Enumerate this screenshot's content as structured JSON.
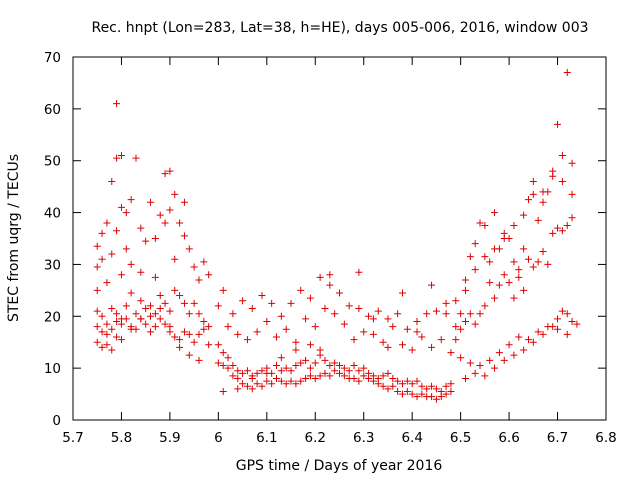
{
  "chart_data": {
    "type": "scatter",
    "title": "Rec. hnpt (Lon=283, Lat=38, h=HE), days 005-006, 2016, window 003",
    "xlabel": "GPS time / Days of year 2016",
    "ylabel": "STEC from uqrg / TECUs",
    "xlim": [
      5.7,
      6.8
    ],
    "ylim": [
      0,
      70
    ],
    "xticks": [
      "5.7",
      "5.8",
      "5.9",
      "6",
      "6.1",
      "6.2",
      "6.3",
      "6.4",
      "6.5",
      "6.6",
      "6.7",
      "6.8"
    ],
    "yticks": [
      "0",
      "10",
      "20",
      "30",
      "40",
      "50",
      "60",
      "70"
    ],
    "marker": "plus",
    "color": "#e00000",
    "grid": false,
    "series": [
      {
        "x": [
          5.75,
          5.75,
          5.75,
          5.76,
          5.76,
          5.77,
          5.77,
          5.78,
          5.78,
          5.79,
          5.79,
          5.79,
          5.8,
          5.8,
          5.8,
          5.81,
          5.81,
          5.82,
          5.82,
          5.83,
          5.84,
          5.84,
          5.85,
          5.86,
          5.87,
          5.87,
          5.88,
          5.89,
          5.89,
          5.9,
          5.9,
          5.91,
          5.91,
          5.92,
          5.93,
          5.93,
          5.94,
          5.95,
          5.96,
          5.97,
          5.98,
          5.75,
          5.76,
          5.77,
          5.78,
          5.79,
          5.8,
          5.81,
          5.82,
          5.83,
          5.84,
          5.85,
          5.86,
          5.87,
          5.88,
          5.89,
          5.9,
          5.91,
          5.92,
          5.93,
          5.94,
          5.95,
          5.96,
          5.97,
          5.98,
          5.75,
          5.76,
          5.77,
          5.78,
          5.79,
          5.8,
          5.81,
          5.82,
          5.83,
          5.84,
          5.85,
          5.86,
          5.87,
          5.88,
          5.89,
          5.9,
          5.91,
          5.92,
          5.93,
          5.94,
          5.95,
          5.96,
          5.97,
          5.98,
          5.75,
          5.76,
          5.77,
          5.78,
          5.79,
          5.8,
          5.82,
          5.84,
          5.86,
          5.88,
          5.9,
          5.92,
          5.94,
          5.96,
          6.0,
          6.01,
          6.02,
          6.03,
          6.04,
          6.05,
          6.06,
          6.07,
          6.08,
          6.09,
          6.1,
          6.11,
          6.12,
          6.13,
          6.14,
          6.15,
          6.16,
          6.17,
          6.18,
          6.19,
          6.2,
          6.21,
          6.22,
          6.23,
          6.24,
          6.25,
          6.26,
          6.27,
          6.28,
          6.29,
          6.3,
          6.31,
          6.32,
          6.33,
          6.34,
          6.35,
          6.36,
          6.37,
          6.38,
          6.39,
          6.4,
          6.41,
          6.42,
          6.43,
          6.44,
          6.45,
          6.46,
          6.47,
          6.48,
          6.0,
          6.01,
          6.02,
          6.03,
          6.04,
          6.05,
          6.06,
          6.07,
          6.08,
          6.09,
          6.1,
          6.11,
          6.12,
          6.13,
          6.14,
          6.15,
          6.16,
          6.17,
          6.18,
          6.19,
          6.2,
          6.21,
          6.22,
          6.23,
          6.24,
          6.25,
          6.26,
          6.27,
          6.28,
          6.29,
          6.3,
          6.31,
          6.32,
          6.33,
          6.34,
          6.35,
          6.36,
          6.37,
          6.38,
          6.39,
          6.4,
          6.41,
          6.42,
          6.43,
          6.44,
          6.45,
          6.46,
          6.47,
          6.48,
          6.0,
          6.02,
          6.04,
          6.06,
          6.08,
          6.1,
          6.12,
          6.14,
          6.16,
          6.18,
          6.2,
          6.22,
          6.24,
          6.26,
          6.28,
          6.3,
          6.32,
          6.34,
          6.36,
          6.38,
          6.4,
          6.42,
          6.44,
          6.46,
          6.48,
          6.01,
          6.03,
          6.05,
          6.07,
          6.09,
          6.11,
          6.13,
          6.15,
          6.17,
          6.19,
          6.21,
          6.23,
          6.25,
          6.27,
          6.29,
          6.31,
          6.33,
          6.35,
          6.37,
          6.39,
          6.41,
          6.43,
          6.45,
          6.47,
          6.01,
          6.04,
          6.07,
          6.1,
          6.13,
          6.16,
          6.19,
          6.21,
          6.23,
          6.29,
          6.32,
          6.35,
          6.38,
          6.41,
          6.44,
          6.47,
          6.49,
          6.5,
          6.51,
          6.52,
          6.53,
          6.54,
          6.55,
          6.56,
          6.57,
          6.58,
          6.59,
          6.6,
          6.61,
          6.62,
          6.63,
          6.64,
          6.65,
          6.66,
          6.67,
          6.68,
          6.69,
          6.7,
          6.71,
          6.72,
          6.73,
          6.49,
          6.5,
          6.51,
          6.52,
          6.53,
          6.54,
          6.55,
          6.56,
          6.57,
          6.58,
          6.59,
          6.6,
          6.61,
          6.62,
          6.63,
          6.64,
          6.65,
          6.66,
          6.67,
          6.68,
          6.69,
          6.7,
          6.71,
          6.72,
          6.73,
          6.49,
          6.51,
          6.53,
          6.55,
          6.57,
          6.59,
          6.61,
          6.63,
          6.65,
          6.67,
          6.69,
          6.71,
          6.73,
          6.5,
          6.52,
          6.54,
          6.56,
          6.58,
          6.6,
          6.62,
          6.64,
          6.66,
          6.68,
          6.7,
          6.72,
          6.74,
          6.51,
          6.53,
          6.55,
          6.57,
          6.59,
          6.61,
          6.63,
          6.65,
          6.67,
          6.69,
          6.7,
          6.71,
          6.72,
          6.73
        ],
        "y": [
          33.5,
          29.5,
          25.0,
          36.0,
          31.0,
          26.5,
          38.0,
          46.0,
          32.0,
          61.0,
          50.5,
          36.5,
          51.0,
          41.0,
          28.0,
          40.0,
          33.0,
          42.5,
          30.0,
          50.5,
          37.0,
          28.5,
          34.5,
          42.0,
          35.0,
          27.5,
          39.5,
          47.5,
          38.0,
          48.0,
          40.5,
          43.5,
          31.0,
          38.0,
          35.5,
          42.0,
          33.0,
          29.5,
          27.0,
          30.5,
          28.0,
          21.0,
          20.0,
          18.5,
          21.5,
          20.5,
          19.5,
          22.0,
          24.5,
          20.5,
          23.0,
          21.5,
          22.0,
          20.5,
          24.0,
          22.5,
          21.0,
          25.0,
          24.0,
          22.5,
          20.5,
          22.5,
          20.5,
          19.0,
          18.0,
          18.0,
          17.0,
          16.5,
          17.5,
          19.0,
          18.5,
          19.5,
          18.0,
          17.5,
          19.5,
          18.5,
          17.0,
          18.0,
          19.5,
          18.5,
          17.0,
          16.0,
          15.5,
          17.0,
          16.5,
          15.0,
          16.5,
          17.5,
          14.5,
          15.0,
          14.0,
          14.5,
          13.5,
          16.0,
          15.5,
          17.5,
          19.5,
          20.0,
          21.5,
          18.0,
          14.0,
          12.5,
          11.5,
          14.5,
          13.0,
          12.0,
          10.5,
          9.5,
          9.0,
          9.5,
          8.5,
          9.0,
          9.5,
          10.0,
          9.0,
          10.5,
          9.5,
          10.0,
          9.5,
          10.5,
          11.0,
          11.5,
          10.0,
          11.0,
          12.5,
          11.5,
          10.5,
          11.0,
          10.5,
          10.0,
          9.5,
          10.5,
          9.5,
          10.0,
          9.0,
          8.5,
          8.0,
          8.5,
          9.0,
          8.0,
          7.5,
          7.0,
          7.5,
          7.0,
          7.5,
          6.5,
          6.0,
          6.5,
          6.0,
          5.5,
          6.5,
          7.0,
          11.0,
          10.5,
          10.0,
          8.5,
          8.0,
          7.0,
          6.5,
          6.0,
          7.0,
          6.5,
          7.5,
          7.0,
          8.0,
          7.5,
          7.0,
          7.5,
          7.0,
          7.5,
          8.0,
          8.5,
          8.0,
          8.5,
          9.0,
          8.5,
          9.5,
          9.0,
          8.5,
          8.0,
          8.0,
          7.5,
          8.5,
          8.0,
          7.5,
          7.0,
          6.5,
          6.0,
          6.5,
          5.5,
          5.0,
          5.5,
          5.0,
          4.5,
          5.0,
          4.5,
          4.5,
          4.0,
          4.5,
          5.0,
          5.5,
          22.0,
          18.0,
          16.5,
          15.5,
          17.0,
          19.0,
          16.0,
          17.5,
          15.0,
          19.5,
          18.0,
          21.5,
          20.5,
          18.5,
          15.5,
          17.0,
          16.5,
          15.0,
          18.0,
          14.5,
          13.5,
          16.0,
          14.0,
          15.5,
          13.0,
          25.0,
          20.5,
          23.0,
          21.5,
          24.0,
          22.5,
          20.0,
          22.5,
          25.0,
          23.5,
          27.5,
          26.0,
          24.5,
          22.0,
          21.5,
          20.0,
          21.0,
          19.5,
          20.5,
          17.5,
          19.0,
          20.5,
          21.0,
          22.5,
          5.5,
          6.0,
          8.0,
          9.0,
          12.0,
          13.5,
          14.5,
          13.5,
          28.0,
          28.5,
          19.5,
          14.0,
          24.5,
          17.0,
          26.0,
          20.5,
          15.5,
          20.5,
          25.0,
          31.5,
          34.0,
          38.0,
          37.5,
          30.5,
          40.0,
          33.0,
          36.0,
          35.0,
          30.5,
          29.0,
          33.0,
          42.5,
          46.0,
          38.5,
          42.0,
          44.0,
          48.0,
          57.0,
          51.0,
          67.0,
          49.5,
          18.0,
          17.5,
          19.0,
          20.5,
          18.5,
          20.5,
          22.0,
          26.5,
          23.5,
          26.0,
          28.0,
          26.5,
          23.5,
          27.5,
          25.0,
          31.0,
          29.5,
          30.5,
          32.5,
          30.0,
          36.0,
          37.0,
          36.5,
          37.5,
          39.0,
          23.0,
          27.0,
          29.0,
          31.5,
          33.0,
          35.0,
          37.5,
          39.5,
          43.5,
          44.0,
          47.0,
          46.0,
          43.5,
          12.0,
          11.0,
          10.5,
          11.5,
          13.0,
          14.5,
          16.0,
          15.5,
          17.0,
          18.0,
          17.5,
          16.5,
          18.5,
          8.0,
          9.0,
          8.5,
          10.0,
          11.5,
          12.5,
          13.5,
          15.0,
          16.5,
          18.0,
          19.5,
          21.0,
          20.5,
          19.0
        ]
      }
    ]
  }
}
